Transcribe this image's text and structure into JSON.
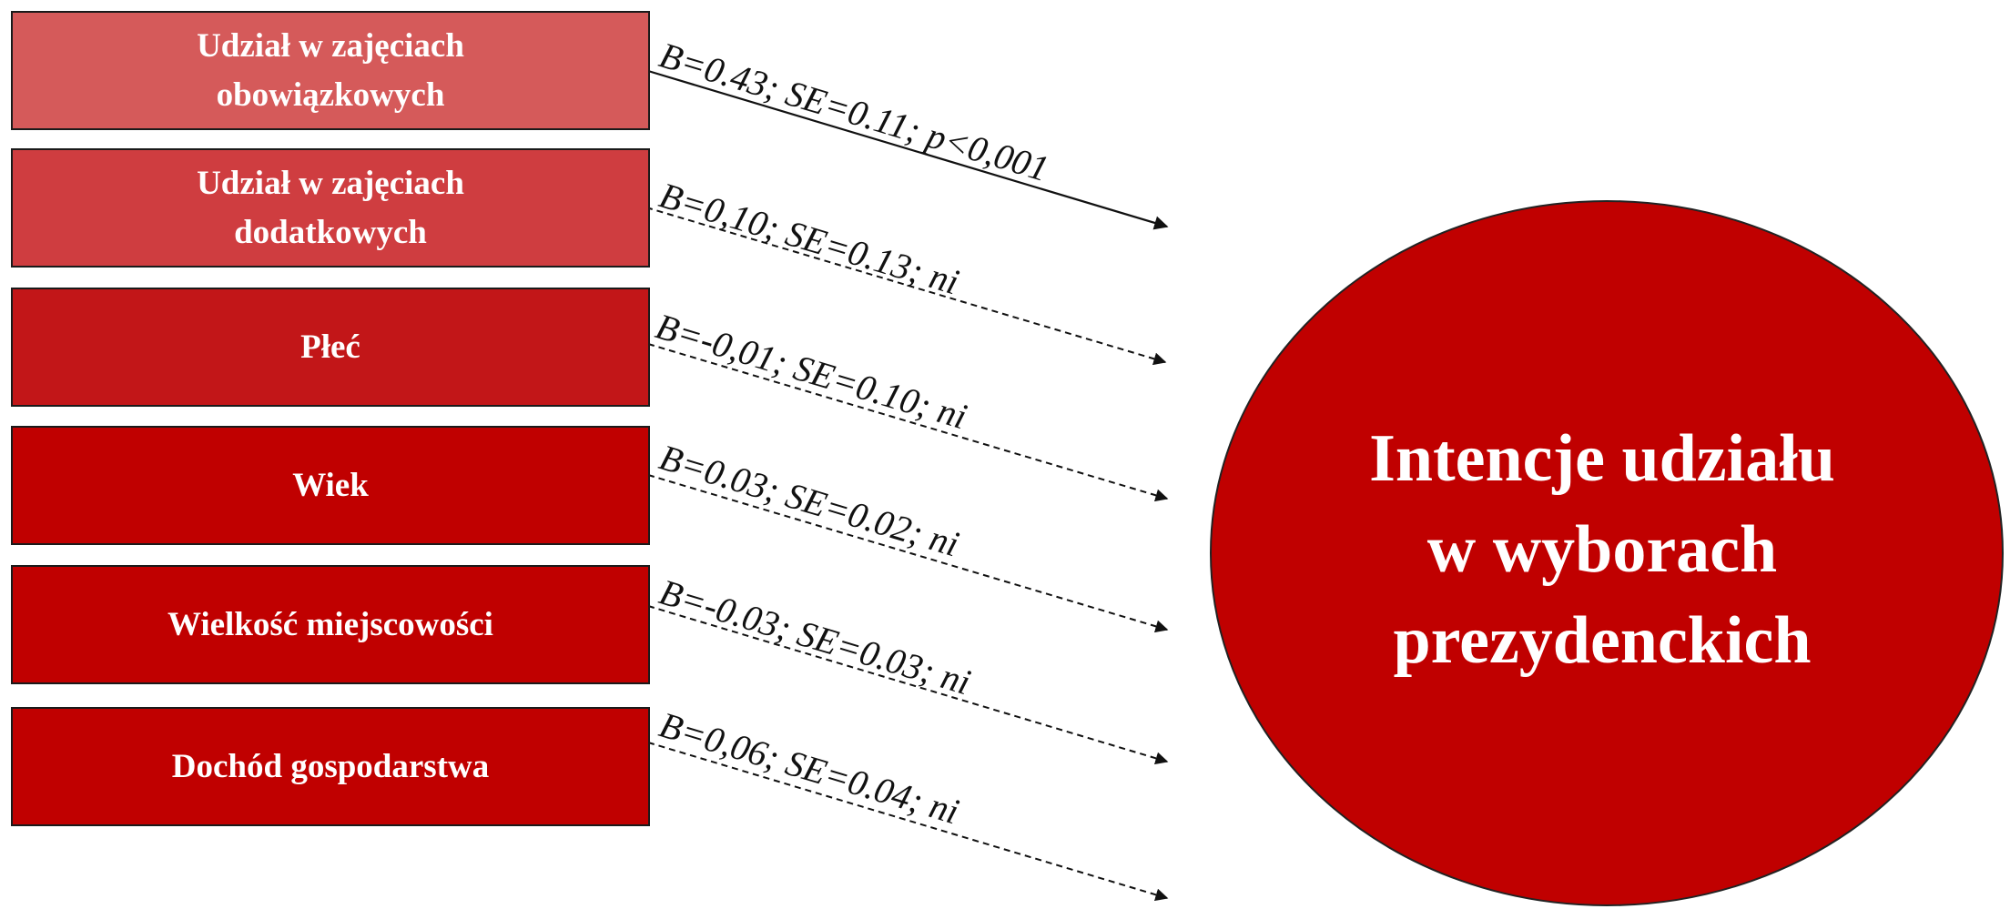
{
  "predictors": [
    {
      "lines": [
        "Udział w zajęciach",
        "obowiązkowych"
      ],
      "color": "#d55a5a"
    },
    {
      "lines": [
        "Udział w zajęciach",
        "dodatkowych"
      ],
      "color": "#cf3d40"
    },
    {
      "lines": [
        "Płeć"
      ],
      "color": "#c21618"
    },
    {
      "lines": [
        "Wiek"
      ],
      "color": "#c00000"
    },
    {
      "lines": [
        "Wielkość miejscowości"
      ],
      "color": "#c00000"
    },
    {
      "lines": [
        "Dochód gospodarstwa"
      ],
      "color": "#c00000"
    }
  ],
  "paths": [
    {
      "label": "B=0.43; SE=0.11; p<0,001",
      "significant": true
    },
    {
      "label": "B=0,10; SE=0.13; ni",
      "significant": false
    },
    {
      "label": "B=-0,01; SE=0.10; ni",
      "significant": false
    },
    {
      "label": "B=0.03; SE=0.02; ni",
      "significant": false
    },
    {
      "label": "B=-0.03; SE=0.03; ni",
      "significant": false
    },
    {
      "label": "B=0,06; SE=0.04; ni",
      "significant": false
    }
  ],
  "outcome": {
    "lines": [
      "Intencje udziału",
      "w wyborach",
      "prezydenckich"
    ],
    "color": "#c00000"
  }
}
